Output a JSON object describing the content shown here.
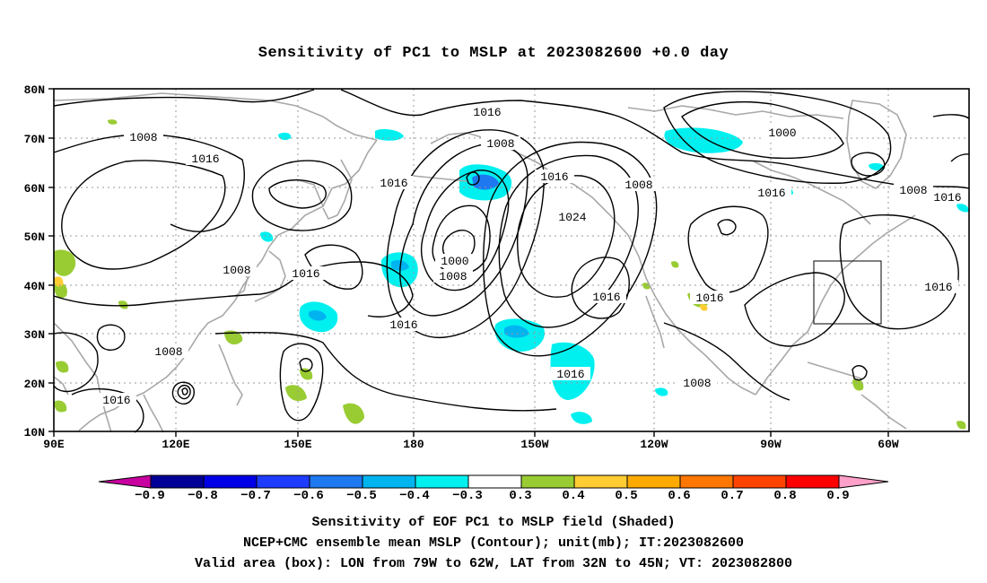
{
  "title": "Sensitivity of PC1 to MSLP at 2023082600 +0.0 day",
  "lat_labels": [
    "80N",
    "70N",
    "60N",
    "50N",
    "40N",
    "30N",
    "20N",
    "10N"
  ],
  "lon_labels": [
    "90E",
    "120E",
    "150E",
    "180",
    "150W",
    "120W",
    "90W",
    "60W"
  ],
  "contour_labels": [
    {
      "text": "1016"
    },
    {
      "text": "1008"
    },
    {
      "text": "1016"
    },
    {
      "text": "1008"
    },
    {
      "text": "1016"
    },
    {
      "text": "1016"
    },
    {
      "text": "1016"
    },
    {
      "text": "1008"
    },
    {
      "text": "1016"
    },
    {
      "text": "1000"
    },
    {
      "text": "1008"
    },
    {
      "text": "1008"
    },
    {
      "text": "1016"
    },
    {
      "text": "1024"
    },
    {
      "text": "1008"
    },
    {
      "text": "1016"
    },
    {
      "text": "1016"
    },
    {
      "text": "1000"
    },
    {
      "text": "1008"
    },
    {
      "text": "1016"
    },
    {
      "text": "1016"
    },
    {
      "text": "1008"
    },
    {
      "text": "1016"
    },
    {
      "text": "1008"
    },
    {
      "text": "1016"
    }
  ],
  "colorbar": {
    "labels": [
      "−0.9",
      "−0.8",
      "−0.7",
      "−0.6",
      "−0.5",
      "−0.4",
      "−0.3",
      "0.3",
      "0.4",
      "0.5",
      "0.6",
      "0.7",
      "0.8",
      "0.9"
    ],
    "colors": [
      "#000096",
      "#0000e6",
      "#1e3cff",
      "#1e78f0",
      "#00b4f0",
      "#00f0f0",
      "#ffffff",
      "#99cc33",
      "#ffcc33",
      "#ffaa00",
      "#ff7700",
      "#ff4400",
      "#ff0000"
    ],
    "under_color": "#c800a0",
    "over_color": "#ffa0c8"
  },
  "footer": {
    "line1": "Sensitivity of EOF PC1 to MSLP field (Shaded)",
    "line2": "NCEP+CMC ensemble mean MSLP (Contour); unit(mb); IT:2023082600",
    "line3": "Valid area (box): LON from 79W to 62W, LAT from 32N to 45N; VT: 2023082800"
  }
}
